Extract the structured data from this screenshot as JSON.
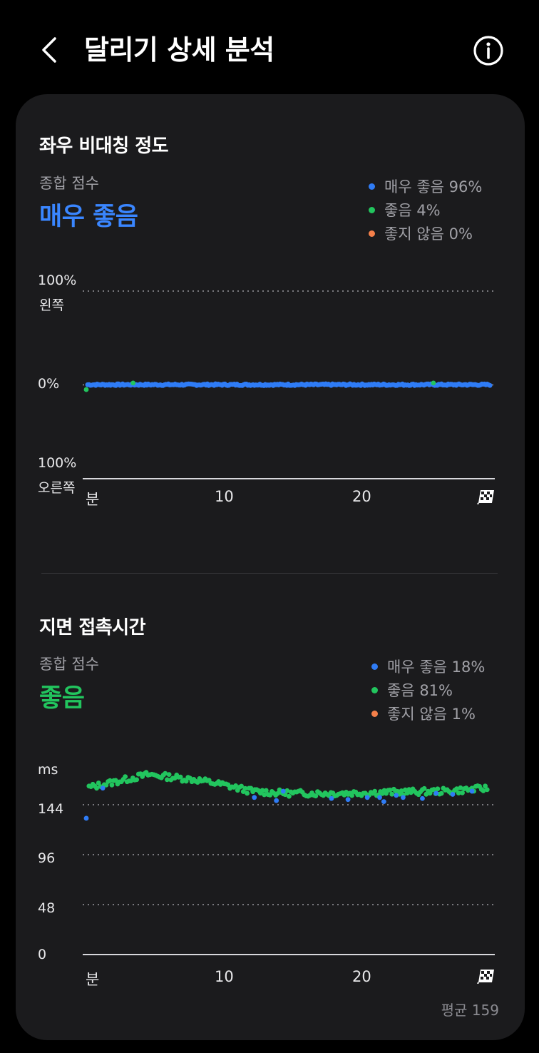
{
  "header": {
    "title": "달리기 상세 분석"
  },
  "asymmetry": {
    "title": "좌우 비대칭 정도",
    "score_label": "종합 점수",
    "score_value": "매우 좋음",
    "legend": [
      {
        "label": "매우 좋음 96%",
        "color": "#2f7cf6"
      },
      {
        "label": "좋음 4%",
        "color": "#22c55e"
      },
      {
        "label": "좋지 않음 0%",
        "color": "#f5804a"
      }
    ],
    "y_labels": {
      "top_pct": "100%",
      "top_side": "왼쪽",
      "middle": "0%",
      "bottom_pct": "100%",
      "bottom_side": "오른쪽"
    },
    "x_labels": [
      "분",
      "10",
      "20"
    ]
  },
  "contact": {
    "title": "지면 접촉시간",
    "score_label": "종합 점수",
    "score_value": "좋음",
    "legend": [
      {
        "label": "매우 좋음 18%",
        "color": "#2f7cf6"
      },
      {
        "label": "좋음 81%",
        "color": "#22c55e"
      },
      {
        "label": "좋지 않음 1%",
        "color": "#f5804a"
      }
    ],
    "y_unit": "ms",
    "y_ticks": [
      "144",
      "96",
      "48",
      "0"
    ],
    "x_labels": [
      "분",
      "10",
      "20"
    ],
    "average": "평균 159"
  },
  "chart_data": [
    {
      "type": "scatter",
      "title": "좌우 비대칭 정도",
      "xlabel": "분",
      "xlim": [
        0,
        29.5
      ],
      "ylim": [
        -100,
        100
      ],
      "x_ticks": [
        "10",
        "20"
      ],
      "y_ticks": [
        "100% 왼쪽",
        "0%",
        "100% 오른쪽"
      ],
      "series": [
        {
          "name": "매우 좋음 96%",
          "color": "#2f7cf6",
          "x_range": [
            0.1,
            29.3
          ],
          "count": 300,
          "y_mean": 0.2,
          "y_jitter": 0.9
        },
        {
          "name": "좋음 4%",
          "color": "#22c55e",
          "points": [
            [
              0.0,
              -5
            ],
            [
              3.4,
              2
            ],
            [
              25.2,
              2
            ]
          ]
        }
      ]
    },
    {
      "type": "scatter",
      "title": "지면 접촉시간",
      "xlabel": "분",
      "ylabel": "ms",
      "xlim": [
        0,
        29.5
      ],
      "ylim": [
        0,
        192
      ],
      "y_ticks": [
        144,
        96,
        48,
        0
      ],
      "x_ticks": [
        "10",
        "20"
      ],
      "average": 159,
      "series": [
        {
          "name": "좋음 81%",
          "color": "#22c55e",
          "trend": [
            [
              0.0,
              160
            ],
            [
              4.5,
              173
            ],
            [
              8.0,
              168
            ],
            [
              10.0,
              163
            ],
            [
              12.0,
              157
            ],
            [
              14.5,
              155
            ],
            [
              18.0,
              155
            ],
            [
              22.0,
              156
            ],
            [
              26.0,
              157
            ],
            [
              29.3,
              160
            ]
          ],
          "count": 210,
          "jitter": 3
        },
        {
          "name": "매우 좋음 18%",
          "color": "#2f7cf6",
          "points": [
            [
              0.0,
              131
            ],
            [
              1.2,
              160
            ],
            [
              12.2,
              151
            ],
            [
              13.8,
              148
            ],
            [
              14.3,
              157
            ],
            [
              17.8,
              150
            ],
            [
              19.0,
              149
            ],
            [
              20.4,
              151
            ],
            [
              21.3,
              151
            ],
            [
              21.6,
              147
            ],
            [
              22.5,
              153
            ],
            [
              23.0,
              151
            ],
            [
              24.4,
              150
            ],
            [
              25.4,
              155
            ],
            [
              26.6,
              154
            ],
            [
              28.0,
              157
            ]
          ]
        }
      ]
    }
  ]
}
